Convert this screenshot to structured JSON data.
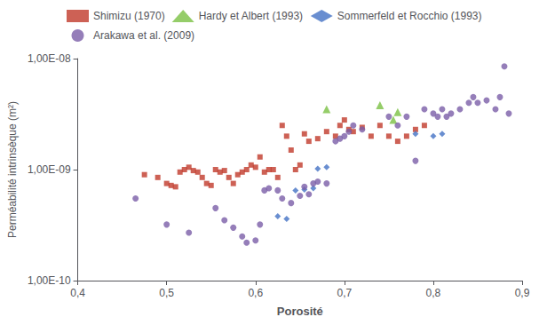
{
  "chart_data": {
    "type": "scatter",
    "xlabel": "Porosité",
    "ylabel": "Perméabilité intrinsèque (m²)",
    "log": "y",
    "grid": false,
    "legend": "upper left",
    "xlim": [
      0.4,
      0.9
    ],
    "ylim": [
      1e-10,
      1e-08
    ],
    "xticks": [
      {
        "value": 0.4,
        "label": "0,4"
      },
      {
        "value": 0.5,
        "label": "0,5"
      },
      {
        "value": 0.6,
        "label": "0,6"
      },
      {
        "value": 0.7,
        "label": "0,7"
      },
      {
        "value": 0.8,
        "label": "0,8"
      },
      {
        "value": 0.9,
        "label": "0,9"
      }
    ],
    "yticks": [
      {
        "value": 1e-10,
        "label": "1,00E-10"
      },
      {
        "value": 1e-09,
        "label": "1,00E-09"
      },
      {
        "value": 1e-08,
        "label": "1,00E-08"
      }
    ],
    "series": [
      {
        "name": "Shimizu (1970)",
        "color": "#C0392B",
        "marker": "square",
        "x": [
          0.475,
          0.49,
          0.5,
          0.505,
          0.51,
          0.515,
          0.52,
          0.525,
          0.53,
          0.535,
          0.54,
          0.545,
          0.55,
          0.555,
          0.56,
          0.565,
          0.57,
          0.575,
          0.58,
          0.585,
          0.59,
          0.595,
          0.6,
          0.605,
          0.61,
          0.615,
          0.62,
          0.625,
          0.63,
          0.635,
          0.64,
          0.645,
          0.65,
          0.655,
          0.66,
          0.67,
          0.68,
          0.69,
          0.695,
          0.7,
          0.705,
          0.71,
          0.72,
          0.73,
          0.74,
          0.75,
          0.76,
          0.77,
          0.78,
          0.79
        ],
        "y": [
          9e-10,
          8.5e-10,
          7.5e-10,
          7.2e-10,
          7e-10,
          9.5e-10,
          1e-09,
          1.05e-09,
          9.8e-10,
          9.5e-10,
          8.5e-10,
          7.5e-10,
          7.2e-10,
          1e-09,
          9.5e-10,
          9.8e-10,
          8.5e-10,
          7.5e-10,
          9e-10,
          9.5e-10,
          1e-09,
          1.1e-09,
          1.05e-09,
          1.3e-09,
          9.5e-10,
          1e-09,
          1e-09,
          8.5e-10,
          2.5e-09,
          2e-09,
          1.5e-09,
          1e-09,
          1.1e-09,
          2.1e-09,
          1.8e-09,
          1.9e-09,
          2.2e-09,
          2e-09,
          2.5e-09,
          2.8e-09,
          2.3e-09,
          2.2e-09,
          2.4e-09,
          2e-09,
          2.5e-09,
          2e-09,
          1.8e-09,
          2e-09,
          2.3e-09,
          2.5e-09
        ]
      },
      {
        "name": "Hardy et Albert (1993)",
        "color": "#7AC143",
        "marker": "triangle",
        "x": [
          0.68,
          0.74,
          0.755,
          0.76
        ],
        "y": [
          3.5e-09,
          3.8e-09,
          2.8e-09,
          3.3e-09
        ]
      },
      {
        "name": "Sommerfeld et Rocchio (1993)",
        "color": "#4472C4",
        "marker": "diamond",
        "x": [
          0.625,
          0.635,
          0.645,
          0.655,
          0.665,
          0.67,
          0.68,
          0.78,
          0.8,
          0.81
        ],
        "y": [
          3.8e-10,
          3.6e-10,
          6.5e-10,
          6.6e-10,
          6.8e-10,
          1.02e-09,
          1.05e-09,
          2.1e-09,
          2e-09,
          2.1e-09
        ]
      },
      {
        "name": "Arakawa et al. (2009)",
        "color": "#7B5EA7",
        "marker": "circle",
        "x": [
          0.465,
          0.5,
          0.525,
          0.555,
          0.565,
          0.575,
          0.585,
          0.59,
          0.6,
          0.605,
          0.61,
          0.615,
          0.625,
          0.63,
          0.64,
          0.65,
          0.655,
          0.66,
          0.665,
          0.67,
          0.68,
          0.69,
          0.695,
          0.7,
          0.705,
          0.71,
          0.72,
          0.75,
          0.76,
          0.77,
          0.78,
          0.79,
          0.8,
          0.805,
          0.81,
          0.815,
          0.82,
          0.83,
          0.84,
          0.845,
          0.85,
          0.86,
          0.87,
          0.875,
          0.88,
          0.885
        ],
        "y": [
          5.5e-10,
          3.2e-10,
          2.7e-10,
          4.5e-10,
          3.5e-10,
          3e-10,
          2.5e-10,
          2.2e-10,
          2.3e-10,
          3.2e-10,
          6.5e-10,
          6.8e-10,
          6.5e-10,
          5.5e-10,
          5e-10,
          5.8e-10,
          7e-10,
          6e-10,
          7.5e-10,
          7.8e-10,
          7.5e-10,
          1.8e-09,
          1.9e-09,
          2e-09,
          2.2e-09,
          2.5e-09,
          2.3e-09,
          3e-09,
          2.5e-09,
          3e-09,
          1.2e-09,
          3.5e-09,
          3.2e-09,
          3e-09,
          3.5e-09,
          3e-09,
          3.2e-09,
          3.5e-09,
          4e-09,
          4.5e-09,
          4e-09,
          4.2e-09,
          3.5e-09,
          4.5e-09,
          8.5e-09,
          3.2e-09
        ]
      }
    ]
  }
}
